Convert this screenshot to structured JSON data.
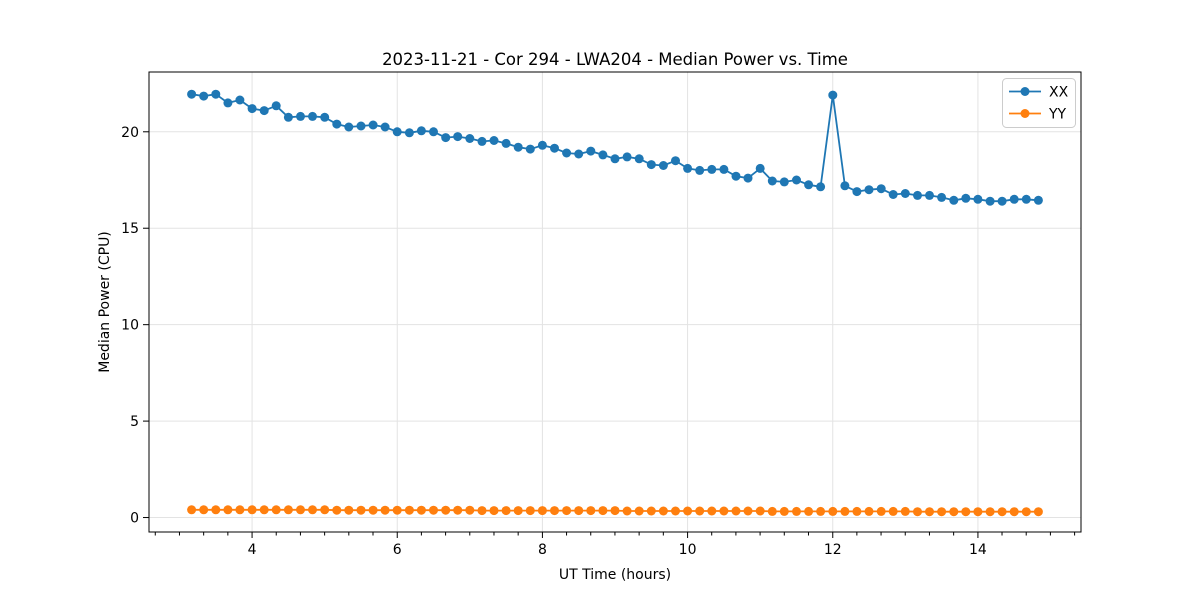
{
  "chart_data": {
    "type": "line",
    "title": "2023-11-21 - Cor 294 - LWA204 - Median Power vs. Time",
    "xlabel": "UT Time (hours)",
    "ylabel": "Median Power (CPU)",
    "xlim": [
      2.58,
      15.42
    ],
    "ylim": [
      -0.75,
      23.1
    ],
    "xticks": [
      4,
      6,
      8,
      10,
      12,
      14
    ],
    "x_minor_tick_step": 0.3333,
    "yticks": [
      0,
      5,
      10,
      15,
      20
    ],
    "grid": true,
    "grid_color": "#e3e3e3",
    "spine_color": "#000000",
    "legend_position": "upper right",
    "marker": "circle",
    "marker_radius": 4.5,
    "line_width": 1.8,
    "x": [
      3.167,
      3.333,
      3.5,
      3.667,
      3.833,
      4,
      4.167,
      4.333,
      4.5,
      4.667,
      4.833,
      5,
      5.167,
      5.333,
      5.5,
      5.667,
      5.833,
      6,
      6.167,
      6.333,
      6.5,
      6.667,
      6.833,
      7,
      7.167,
      7.333,
      7.5,
      7.667,
      7.833,
      8,
      8.167,
      8.333,
      8.5,
      8.667,
      8.833,
      9,
      9.167,
      9.333,
      9.5,
      9.667,
      9.833,
      10,
      10.167,
      10.333,
      10.5,
      10.667,
      10.833,
      11,
      11.167,
      11.333,
      11.5,
      11.667,
      11.833,
      12,
      12.167,
      12.333,
      12.5,
      12.667,
      12.833,
      13,
      13.167,
      13.333,
      13.5,
      13.667,
      13.833,
      14,
      14.167,
      14.333,
      14.5,
      14.667,
      14.833
    ],
    "series": [
      {
        "name": "XX",
        "color": "#1f77b4",
        "values": [
          21.95,
          21.85,
          21.95,
          21.5,
          21.65,
          21.2,
          21.1,
          21.35,
          20.75,
          20.8,
          20.8,
          20.75,
          20.4,
          20.25,
          20.3,
          20.35,
          20.25,
          20.0,
          19.95,
          20.05,
          20.0,
          19.7,
          19.75,
          19.65,
          19.5,
          19.55,
          19.4,
          19.2,
          19.1,
          19.3,
          19.15,
          18.9,
          18.85,
          19.0,
          18.8,
          18.6,
          18.7,
          18.6,
          18.3,
          18.25,
          18.5,
          18.1,
          18.0,
          18.05,
          18.05,
          17.7,
          17.6,
          18.1,
          17.45,
          17.4,
          17.5,
          17.25,
          17.15,
          21.9,
          17.2,
          16.9,
          17.0,
          17.05,
          16.75,
          16.8,
          16.7,
          16.7,
          16.6,
          16.45,
          16.55,
          16.5,
          16.4,
          16.4,
          16.5,
          16.5,
          16.45
        ]
      },
      {
        "name": "YY",
        "color": "#ff7f0e",
        "values": [
          0.4,
          0.4,
          0.4,
          0.4,
          0.4,
          0.4,
          0.4,
          0.4,
          0.4,
          0.4,
          0.4,
          0.4,
          0.38,
          0.38,
          0.38,
          0.38,
          0.38,
          0.38,
          0.38,
          0.38,
          0.38,
          0.38,
          0.38,
          0.38,
          0.36,
          0.36,
          0.36,
          0.36,
          0.36,
          0.36,
          0.36,
          0.36,
          0.36,
          0.36,
          0.36,
          0.36,
          0.34,
          0.34,
          0.34,
          0.34,
          0.34,
          0.34,
          0.34,
          0.34,
          0.34,
          0.34,
          0.34,
          0.34,
          0.32,
          0.32,
          0.32,
          0.32,
          0.32,
          0.32,
          0.32,
          0.32,
          0.32,
          0.32,
          0.32,
          0.32,
          0.3,
          0.3,
          0.3,
          0.3,
          0.3,
          0.3,
          0.3,
          0.3,
          0.3,
          0.3,
          0.3
        ]
      }
    ]
  }
}
